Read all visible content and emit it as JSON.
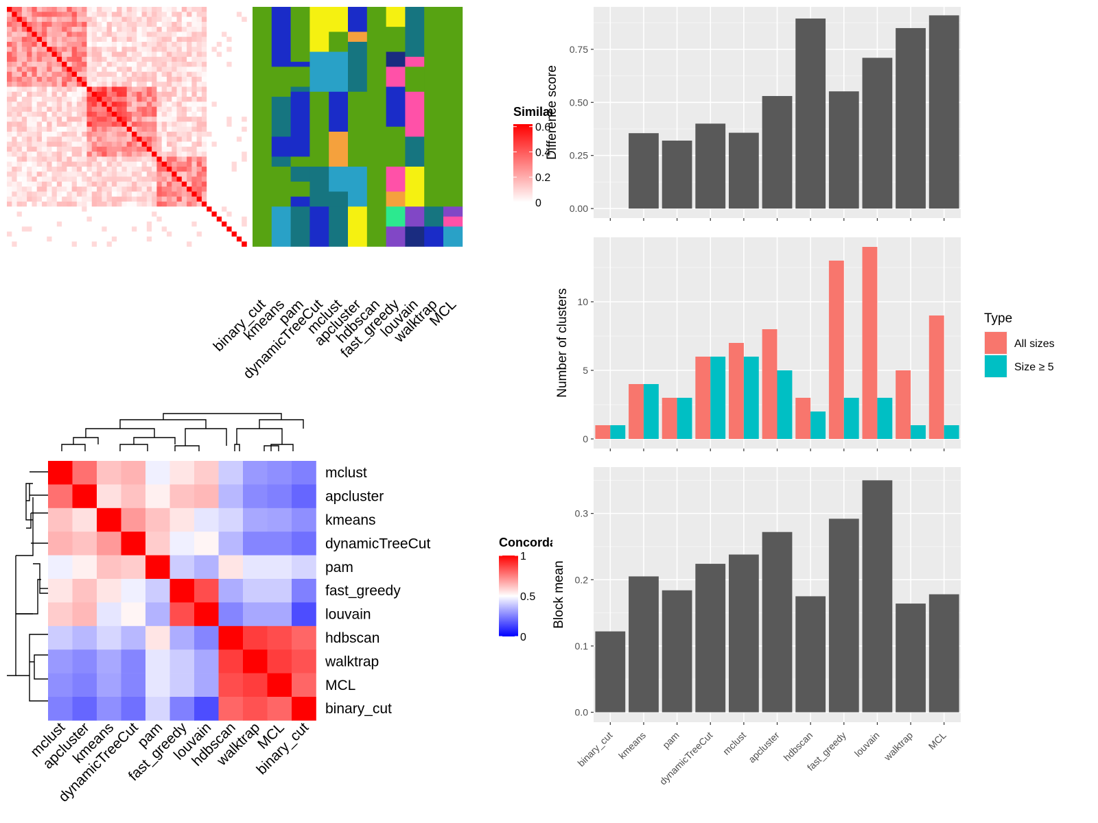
{
  "colors": {
    "panel_bg": "#EBEBEB",
    "gridline": "#FFFFFF",
    "bar_dark": "#595959",
    "all_sizes": "#F8766D",
    "size_ge_5": "#00BFC4",
    "similarity_high": "#FF0000",
    "concordance_high": "#FF0000",
    "concordance_mid": "#FFFFFF",
    "concordance_low": "#0000FF"
  },
  "similarity_heatmap": {
    "legend_title": "Similarity",
    "legend_ticks": [
      "0.6",
      "0.4",
      "0.2",
      "0"
    ],
    "legend_values": [
      0.6,
      0.4,
      0.2,
      0
    ]
  },
  "cluster_assignment": {
    "methods": [
      "binary_cut",
      "kmeans",
      "pam",
      "dynamicTreeCut",
      "mclust",
      "apcluster",
      "hdbscan",
      "fast_greedy",
      "louvain",
      "walktrap",
      "MCL"
    ]
  },
  "concordance_heatmap": {
    "legend_title": "Concordance",
    "legend_ticks": [
      "1",
      "0.5",
      "0"
    ],
    "legend_values": [
      1,
      0.5,
      0
    ],
    "methods": [
      "mclust",
      "apcluster",
      "kmeans",
      "dynamicTreeCut",
      "pam",
      "fast_greedy",
      "louvain",
      "hdbscan",
      "walktrap",
      "MCL",
      "binary_cut"
    ],
    "matrix": [
      [
        1.0,
        0.78,
        0.62,
        0.65,
        0.47,
        0.55,
        0.6,
        0.4,
        0.3,
        0.28,
        0.25
      ],
      [
        0.78,
        1.0,
        0.56,
        0.62,
        0.53,
        0.62,
        0.64,
        0.36,
        0.27,
        0.25,
        0.2
      ],
      [
        0.62,
        0.56,
        1.0,
        0.7,
        0.62,
        0.55,
        0.45,
        0.42,
        0.33,
        0.32,
        0.28
      ],
      [
        0.65,
        0.62,
        0.7,
        1.0,
        0.6,
        0.47,
        0.52,
        0.36,
        0.26,
        0.26,
        0.22
      ],
      [
        0.47,
        0.53,
        0.62,
        0.6,
        1.0,
        0.4,
        0.35,
        0.55,
        0.45,
        0.45,
        0.42
      ],
      [
        0.55,
        0.62,
        0.55,
        0.47,
        0.4,
        1.0,
        0.85,
        0.34,
        0.4,
        0.4,
        0.25
      ],
      [
        0.6,
        0.64,
        0.45,
        0.52,
        0.35,
        0.85,
        1.0,
        0.26,
        0.33,
        0.33,
        0.15
      ],
      [
        0.4,
        0.36,
        0.42,
        0.36,
        0.55,
        0.34,
        0.26,
        1.0,
        0.88,
        0.85,
        0.8
      ],
      [
        0.3,
        0.27,
        0.33,
        0.26,
        0.45,
        0.4,
        0.33,
        0.88,
        1.0,
        0.88,
        0.84
      ],
      [
        0.28,
        0.25,
        0.32,
        0.26,
        0.45,
        0.4,
        0.33,
        0.85,
        0.88,
        1.0,
        0.8
      ],
      [
        0.25,
        0.2,
        0.28,
        0.22,
        0.42,
        0.25,
        0.15,
        0.8,
        0.84,
        0.8,
        1.0
      ]
    ]
  },
  "chart_data": [
    {
      "type": "bar",
      "categories": [
        "binary_cut",
        "kmeans",
        "pam",
        "dynamicTreeCut",
        "mclust",
        "apcluster",
        "hdbscan",
        "fast_greedy",
        "louvain",
        "walktrap",
        "MCL"
      ],
      "values": [
        0,
        0.355,
        0.32,
        0.4,
        0.357,
        0.53,
        0.895,
        0.552,
        0.71,
        0.85,
        0.91
      ],
      "title": "",
      "xlabel": "",
      "ylabel": "Difference score",
      "ylim": [
        -0.045,
        0.95
      ],
      "yticks": [
        "0.00",
        "0.25",
        "0.50",
        "0.75"
      ],
      "ytick_values": [
        0,
        0.25,
        0.5,
        0.75
      ],
      "grid": true,
      "legend": "none"
    },
    {
      "type": "bar",
      "categories": [
        "binary_cut",
        "kmeans",
        "pam",
        "dynamicTreeCut",
        "mclust",
        "apcluster",
        "hdbscan",
        "fast_greedy",
        "louvain",
        "walktrap",
        "MCL"
      ],
      "series": [
        {
          "name": "All sizes",
          "values": [
            1,
            4,
            3,
            6,
            7,
            8,
            3,
            13,
            14,
            5,
            9
          ]
        },
        {
          "name": "Size ≥ 5",
          "values": [
            1,
            4,
            3,
            6,
            6,
            5,
            2,
            3,
            3,
            1,
            1
          ]
        }
      ],
      "title": "",
      "xlabel": "",
      "ylabel": "Number of clusters",
      "ylim": [
        -0.7,
        14.7
      ],
      "yticks": [
        "0",
        "5",
        "10"
      ],
      "ytick_values": [
        0,
        5,
        10
      ],
      "legend_title": "Type",
      "legend": "right",
      "grid": true
    },
    {
      "type": "bar",
      "categories": [
        "binary_cut",
        "kmeans",
        "pam",
        "dynamicTreeCut",
        "mclust",
        "apcluster",
        "hdbscan",
        "fast_greedy",
        "louvain",
        "walktrap",
        "MCL"
      ],
      "values": [
        0.122,
        0.205,
        0.184,
        0.224,
        0.238,
        0.272,
        0.175,
        0.292,
        0.35,
        0.164,
        0.178
      ],
      "title": "",
      "xlabel": "",
      "ylabel": "Block mean",
      "ylim": [
        -0.015,
        0.37
      ],
      "yticks": [
        "0.0",
        "0.1",
        "0.2",
        "0.3"
      ],
      "ytick_values": [
        0,
        0.1,
        0.2,
        0.3
      ],
      "grid": true,
      "legend": "none"
    }
  ]
}
